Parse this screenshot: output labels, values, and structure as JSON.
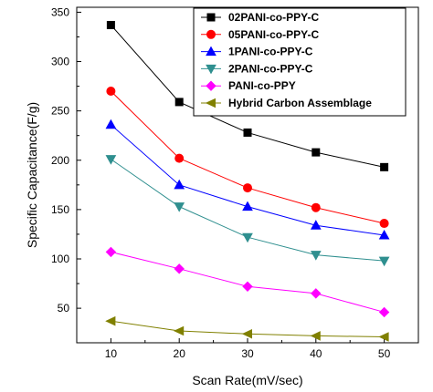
{
  "chart_data": {
    "type": "line",
    "xlabel": "Scan Rate(mV/sec)",
    "ylabel": "Specific Capacitance(F/g)",
    "x": [
      10,
      20,
      30,
      40,
      50
    ],
    "x_ticks": [
      "10",
      "20",
      "30",
      "40",
      "50"
    ],
    "y_ticks": [
      "50",
      "100",
      "150",
      "200",
      "250",
      "300",
      "350"
    ],
    "xlim": [
      5,
      55
    ],
    "ylim": [
      15,
      355
    ],
    "legend_position": "top-right",
    "series": [
      {
        "name": "02PANI-co-PPY-C",
        "marker": "square",
        "color": "#000000",
        "fill": "#000000",
        "values": [
          337,
          259,
          228,
          208,
          193
        ]
      },
      {
        "name": "05PANI-co-PPY-C",
        "marker": "circle",
        "color": "#ff0000",
        "fill": "#ff0000",
        "values": [
          270,
          202,
          172,
          152,
          136
        ]
      },
      {
        "name": "1PANI-co-PPY-C",
        "marker": "triangle-up",
        "color": "#0000ff",
        "fill": "#0000ff",
        "values": [
          236,
          175,
          153,
          134,
          124
        ]
      },
      {
        "name": "2PANI-co-PPY-C",
        "marker": "triangle-down",
        "color": "#2f8f8f",
        "fill": "#2f8f8f",
        "values": [
          201,
          153,
          122,
          104,
          98
        ]
      },
      {
        "name": "PANI-co-PPY",
        "marker": "diamond",
        "color": "#ff00ff",
        "fill": "#ff00ff",
        "values": [
          107,
          90,
          72,
          65,
          46
        ]
      },
      {
        "name": "Hybrid Carbon Assemblage",
        "marker": "triangle-left",
        "color": "#808000",
        "fill": "#808000",
        "values": [
          37,
          27,
          24,
          22,
          21
        ]
      }
    ]
  }
}
